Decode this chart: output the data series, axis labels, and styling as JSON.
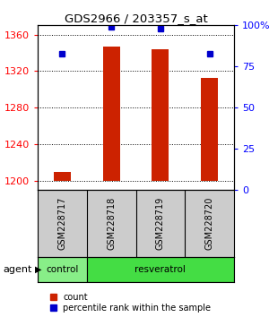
{
  "title": "GDS2966 / 203357_s_at",
  "samples": [
    "GSM228717",
    "GSM228718",
    "GSM228719",
    "GSM228720"
  ],
  "bar_bottom": 1200,
  "bar_values": [
    1210,
    1347,
    1344,
    1313
  ],
  "percentile_values": [
    83,
    99,
    98,
    83
  ],
  "bar_color": "#cc2200",
  "percentile_color": "#0000cc",
  "ylim_left": [
    1190,
    1370
  ],
  "ylim_right": [
    0,
    100
  ],
  "yticks_left": [
    1200,
    1240,
    1280,
    1320,
    1360
  ],
  "yticks_right": [
    0,
    25,
    50,
    75,
    100
  ],
  "ytick_labels_right": [
    "0",
    "25",
    "50",
    "75",
    "100%"
  ],
  "group_labels": [
    "control",
    "resveratrol"
  ],
  "agent_label": "agent",
  "legend_count_label": "count",
  "legend_percentile_label": "percentile rank within the sample",
  "label_area_color": "#cccccc",
  "group_color_control": "#88ee88",
  "group_color_resveratrol": "#44dd44",
  "bar_width": 0.35
}
